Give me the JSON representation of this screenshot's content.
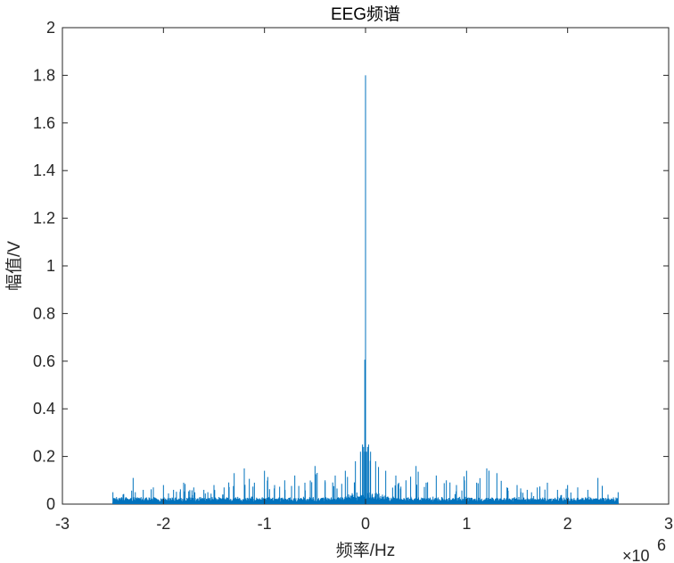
{
  "chart_data": {
    "type": "line",
    "title": "EEG频谱",
    "xlabel": "频率/Hz",
    "ylabel": "幅值/V",
    "xlim": [
      -3,
      3
    ],
    "ylim": [
      0,
      2
    ],
    "x_scale_exponent": "×10^6",
    "x_exponent_prefix": "×10",
    "x_exponent_power": "6",
    "xticks": [
      -3,
      -2,
      -1,
      0,
      1,
      2,
      3
    ],
    "xtick_labels": [
      "-3",
      "-2",
      "-1",
      "0",
      "1",
      "2",
      "3"
    ],
    "yticks": [
      0,
      0.2,
      0.4,
      0.6,
      0.8,
      1,
      1.2,
      1.4,
      1.6,
      1.8,
      2
    ],
    "ytick_labels": [
      "0",
      "0.2",
      "0.4",
      "0.6",
      "0.8",
      "1",
      "1.2",
      "1.4",
      "1.6",
      "1.8",
      "2"
    ],
    "grid": false,
    "line_color": "#0072BD",
    "data_range_x": [
      -2.5,
      2.5
    ],
    "series": [
      {
        "x": [
          -2.5,
          -2.4,
          -2.3,
          -2.2,
          -2.1,
          -2.0,
          -1.9,
          -1.8,
          -1.7,
          -1.6,
          -1.5,
          -1.4,
          -1.3,
          -1.2,
          -1.1,
          -1.0,
          -0.9,
          -0.8,
          -0.7,
          -0.6,
          -0.5,
          -0.4,
          -0.3,
          -0.2,
          -0.1,
          -0.05,
          -0.03,
          -0.02,
          -0.01,
          0,
          0.01,
          0.02,
          0.03,
          0.05,
          0.1,
          0.2,
          0.3,
          0.4,
          0.5,
          0.6,
          0.7,
          0.8,
          0.9,
          1.0,
          1.1,
          1.2,
          1.3,
          1.4,
          1.5,
          1.6,
          1.7,
          1.8,
          1.9,
          2.0,
          2.1,
          2.2,
          2.3,
          2.4,
          2.5
        ],
        "values": [
          0.05,
          0.04,
          0.11,
          0.06,
          0.07,
          0.08,
          0.06,
          0.09,
          0.07,
          0.06,
          0.08,
          0.07,
          0.13,
          0.15,
          0.09,
          0.14,
          0.08,
          0.1,
          0.12,
          0.09,
          0.16,
          0.1,
          0.12,
          0.14,
          0.18,
          0.22,
          0.25,
          0.24,
          0.22,
          1.8,
          0.22,
          0.24,
          0.25,
          0.22,
          0.18,
          0.14,
          0.12,
          0.1,
          0.16,
          0.09,
          0.12,
          0.1,
          0.08,
          0.14,
          0.09,
          0.15,
          0.13,
          0.07,
          0.08,
          0.06,
          0.07,
          0.09,
          0.06,
          0.08,
          0.07,
          0.06,
          0.11,
          0.04,
          0.05
        ]
      }
    ]
  }
}
